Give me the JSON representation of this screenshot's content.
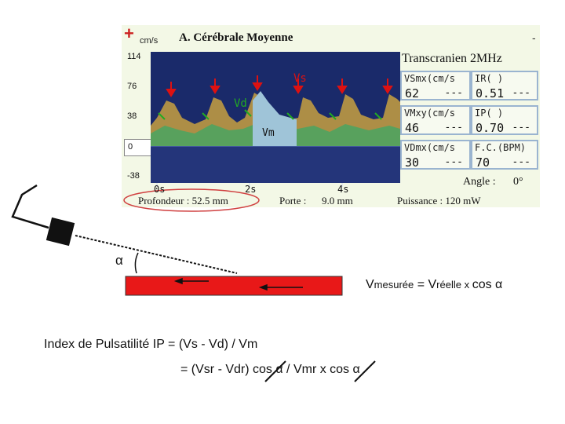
{
  "screen": {
    "unit": "cm/s",
    "title": "A. Cérébrale Moyenne",
    "dash": "-",
    "scale_labels": [
      "114",
      "76",
      "38",
      "0",
      "-38"
    ],
    "probe": "Transcranien 2MHz",
    "trace_labels": {
      "vs": "Vs",
      "vd": "Vd",
      "vm": "Vm"
    },
    "measurements": [
      {
        "label": "VSmx(cm/s",
        "value": "62",
        "extra": "---"
      },
      {
        "label": "IR( )",
        "value": "0.51",
        "extra": "---"
      },
      {
        "label": "VMxy(cm/s",
        "value": "46",
        "extra": "---"
      },
      {
        "label": "IP( )",
        "value": "0.70",
        "extra": "---"
      },
      {
        "label": "VDmx(cm/s",
        "value": "30",
        "extra": "---"
      },
      {
        "label": "F.C.(BPM)",
        "value": "70",
        "extra": "---"
      }
    ],
    "time_labels": [
      "0s",
      "2s",
      "4s"
    ],
    "angle_label": "Angle :",
    "angle_value": "0°",
    "depth": "Profondeur : 52.5 mm",
    "gate_label": "Porte :",
    "gate_value": "9.0 mm",
    "power": "Puissance : 120 mW"
  },
  "diagram": {
    "alpha": "α",
    "formula": {
      "v_big": "V",
      "measured_sub": "mesurée",
      "equals": " = ",
      "v_big_2": "V",
      "real_sub": "réelle",
      "times": " x ",
      "cos": "cos",
      "alpha": " α"
    }
  },
  "index": {
    "line1": "Index de Pulsatilité  IP = (Vs - Vd) / Vm",
    "line2": "= (Vsr - Vdr) cos α / Vmr x cos α"
  },
  "colors": {
    "vessel": "#e81818",
    "screen_bg": "#f3f8e6",
    "spectrum_bg": "#1a2a6a",
    "waveform": "#ffcc33",
    "arrow_red": "#dd1111",
    "marker_green": "#22aa22",
    "vm_fill": "#9fc4d8",
    "depth_ellipse": "#d04040"
  }
}
